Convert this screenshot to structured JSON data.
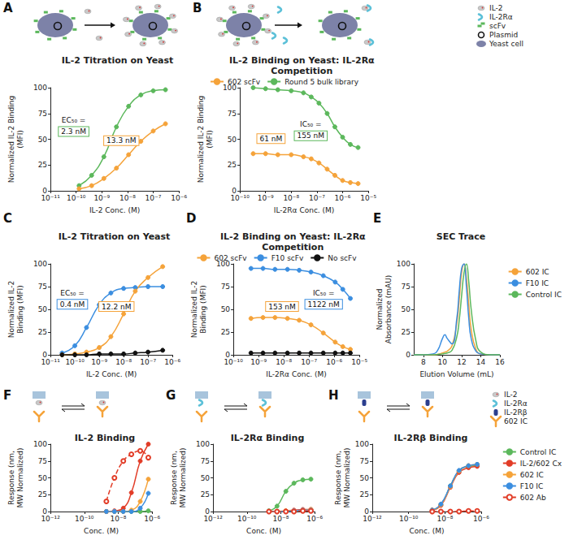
{
  "chart_data": [
    {
      "panel": "A",
      "type": "line",
      "title": "IL-2 Titration on Yeast",
      "x_label": "IL-2 Conc. (M)",
      "y_label": "Normalized IL-2 Binding (MFI)",
      "log": "x",
      "grid": false,
      "xlim": [
        1e-11,
        1e-06
      ],
      "xticks": [
        {
          "value": 1e-11,
          "label": "10⁻¹¹"
        },
        {
          "value": 1e-10,
          "label": "10⁻¹⁰"
        },
        {
          "value": 1e-09,
          "label": "10⁻⁹"
        },
        {
          "value": 1e-08,
          "label": "10⁻⁸"
        },
        {
          "value": 1e-07,
          "label": "10⁻⁷"
        },
        {
          "value": 1e-06,
          "label": "10⁻⁶"
        }
      ],
      "ylim": [
        0,
        100
      ],
      "yticks": [
        0,
        25,
        50,
        75,
        100
      ],
      "series": [
        {
          "color": "#5cb85c",
          "marker": "circle",
          "line_style": "solid",
          "x": [
            1.3e-10,
            4e-10,
            1.2e-09,
            3.7e-09,
            1.1e-08,
            3.3e-08,
            1e-07,
            3e-07
          ],
          "values": [
            5,
            15,
            33,
            62,
            82,
            93,
            97,
            98
          ]
        },
        {
          "color": "#f5a33a",
          "marker": "circle",
          "line_style": "solid",
          "x": [
            1.3e-10,
            4e-10,
            1.2e-09,
            3.7e-09,
            1.1e-08,
            3.3e-08,
            1e-07,
            3e-07
          ],
          "values": [
            2,
            5,
            12,
            22,
            35,
            48,
            58,
            65
          ]
        }
      ],
      "annotations": [
        {
          "text": "EC₅₀ =",
          "boxed": "2.3 nM",
          "color": "#5cb85c"
        },
        {
          "boxed": "13.3 nM",
          "color": "#f5a33a"
        }
      ]
    },
    {
      "panel": "B",
      "type": "line",
      "title": "IL-2 Binding on Yeast: IL-2Rα Competition",
      "x_label": "IL-2Rα Conc. (M)",
      "y_label": "Normalized IL-2 Binding (MFI)",
      "log": "x",
      "grid": false,
      "legend": "top",
      "xlim": [
        1e-10,
        1e-05
      ],
      "xticks": [
        {
          "value": 1e-10,
          "label": "10⁻¹⁰"
        },
        {
          "value": 1e-09,
          "label": "10⁻⁹"
        },
        {
          "value": 1e-08,
          "label": "10⁻⁸"
        },
        {
          "value": 1e-07,
          "label": "10⁻⁷"
        },
        {
          "value": 1e-06,
          "label": "10⁻⁶"
        },
        {
          "value": 1e-05,
          "label": "10⁻⁵"
        }
      ],
      "ylim": [
        0,
        100
      ],
      "yticks": [
        0,
        25,
        50,
        75,
        100
      ],
      "series": [
        {
          "name": "602 scFv",
          "color": "#f5a33a",
          "marker": "circle",
          "line_style": "solid",
          "x": [
            3.3e-10,
            1e-09,
            3e-09,
            1e-08,
            3e-08,
            6e-08,
            1.2e-07,
            2.5e-07,
            5e-07,
            1e-06,
            2e-06,
            4e-06
          ],
          "values": [
            36,
            36,
            35,
            35,
            33,
            31,
            27,
            21,
            15,
            10,
            8,
            7
          ]
        },
        {
          "name": "Round 5 bulk library",
          "color": "#5cb85c",
          "marker": "circle",
          "line_style": "solid",
          "x": [
            3.3e-10,
            1e-09,
            3e-09,
            1e-08,
            3e-08,
            6e-08,
            1.2e-07,
            2.5e-07,
            5e-07,
            1e-06,
            2e-06,
            4e-06
          ],
          "values": [
            100,
            99,
            98,
            97,
            95,
            91,
            85,
            75,
            62,
            52,
            45,
            42
          ]
        }
      ],
      "annotations": [
        {
          "text": "IC₅₀ =",
          "boxed": "155 nM",
          "color": "#5cb85c"
        },
        {
          "boxed": "61 nM",
          "color": "#f5a33a"
        }
      ]
    },
    {
      "panel": "C",
      "type": "line",
      "title": "IL-2 Titration on Yeast",
      "x_label": "IL-2 Conc. (M)",
      "y_label": "Normalized IL-2 Binding (MFI)",
      "log": "x",
      "grid": false,
      "xlim": [
        1e-11,
        1e-06
      ],
      "xticks": [
        {
          "value": 1e-11,
          "label": "10⁻¹¹"
        },
        {
          "value": 1e-10,
          "label": "10⁻¹⁰"
        },
        {
          "value": 1e-09,
          "label": "10⁻⁹"
        },
        {
          "value": 1e-08,
          "label": "10⁻⁸"
        },
        {
          "value": 1e-07,
          "label": "10⁻⁷"
        },
        {
          "value": 1e-06,
          "label": "10⁻⁶"
        }
      ],
      "ylim": [
        0,
        100
      ],
      "yticks": [
        0,
        25,
        50,
        75,
        100
      ],
      "series": [
        {
          "color": "#3b8ee0",
          "marker": "circle",
          "line_style": "solid",
          "x": [
            3e-11,
            1e-10,
            3e-10,
            1e-09,
            3e-09,
            1e-08,
            3e-08,
            1e-07,
            4e-07
          ],
          "values": [
            2,
            10,
            30,
            55,
            68,
            73,
            74,
            75,
            75
          ]
        },
        {
          "color": "#f5a33a",
          "marker": "circle",
          "line_style": "solid",
          "x": [
            3e-11,
            1e-10,
            3e-10,
            1e-09,
            3e-09,
            1e-08,
            3e-08,
            1e-07,
            4e-07
          ],
          "values": [
            0,
            1,
            3,
            8,
            20,
            45,
            70,
            85,
            97
          ]
        },
        {
          "color": "#111111",
          "marker": "circle",
          "line_style": "solid",
          "x": [
            3e-11,
            1e-10,
            3e-10,
            1e-09,
            3e-09,
            1e-08,
            3e-08,
            1e-07,
            4e-07
          ],
          "values": [
            0,
            0,
            0,
            1,
            1,
            1,
            2,
            3,
            5
          ]
        }
      ],
      "annotations": [
        {
          "text": "EC₅₀ =",
          "boxed": "0.4 nM",
          "color": "#3b8ee0"
        },
        {
          "boxed": "12.2 nM",
          "color": "#f5a33a"
        }
      ]
    },
    {
      "panel": "D",
      "type": "line",
      "title": "IL-2 Binding on Yeast: IL-2Rα Competition",
      "x_label": "IL-2Rα Conc. (M)",
      "y_label": "Normalized IL-2 Binding (MFI)",
      "log": "x",
      "grid": false,
      "legend": "top",
      "xlim": [
        1e-10,
        1e-05
      ],
      "xticks": [
        {
          "value": 1e-10,
          "label": "10⁻¹⁰"
        },
        {
          "value": 1e-09,
          "label": "10⁻⁹"
        },
        {
          "value": 1e-08,
          "label": "10⁻⁸"
        },
        {
          "value": 1e-07,
          "label": "10⁻⁷"
        },
        {
          "value": 1e-06,
          "label": "10⁻⁶"
        },
        {
          "value": 1e-05,
          "label": "10⁻⁵"
        }
      ],
      "ylim": [
        0,
        100
      ],
      "yticks": [
        0,
        25,
        50,
        75,
        100
      ],
      "series": [
        {
          "name": "602 scFv",
          "color": "#f5a33a",
          "marker": "circle",
          "line_style": "solid",
          "x": [
            5e-10,
            1.5e-09,
            4.5e-09,
            1.4e-08,
            4.1e-08,
            1.2e-07,
            3.7e-07,
            1.1e-06,
            2.2e-06,
            4.4e-06
          ],
          "values": [
            40,
            41,
            41,
            40,
            38,
            33,
            24,
            14,
            9,
            6
          ]
        },
        {
          "name": "F10 scFv",
          "color": "#3b8ee0",
          "marker": "circle",
          "line_style": "solid",
          "x": [
            5e-10,
            1.5e-09,
            4.5e-09,
            1.4e-08,
            4.1e-08,
            1.2e-07,
            3.7e-07,
            1.1e-06,
            2.2e-06,
            4.4e-06
          ],
          "values": [
            95,
            95,
            94,
            94,
            93,
            91,
            87,
            80,
            72,
            62
          ]
        },
        {
          "name": "No scFv",
          "color": "#111111",
          "marker": "circle",
          "line_style": "solid",
          "x": [
            5e-10,
            1.5e-09,
            4.5e-09,
            1.4e-08,
            4.1e-08,
            1.2e-07,
            3.7e-07,
            1.1e-06,
            2.2e-06,
            4.4e-06
          ],
          "values": [
            2,
            2,
            2,
            2,
            2,
            2,
            2,
            2,
            2,
            2
          ]
        }
      ],
      "annotations": [
        {
          "text": "IC₅₀ =",
          "boxed": "1122 nM",
          "color": "#3b8ee0"
        },
        {
          "boxed": "153 nM",
          "color": "#f5a33a"
        }
      ]
    },
    {
      "panel": "E",
      "type": "line",
      "title": "SEC Trace",
      "x_label": "Elution Volume (mL)",
      "y_label": "Normalized Absorbance (mAU)",
      "grid": false,
      "legend": "right",
      "xlim": [
        7,
        16
      ],
      "xticks": [
        8,
        10,
        12,
        14,
        16
      ],
      "ylim": [
        0,
        100
      ],
      "yticks": [
        0,
        25,
        50,
        75,
        100
      ],
      "x": [
        7,
        8,
        9,
        9.5,
        10,
        10.25,
        10.5,
        11,
        11.5,
        11.75,
        12,
        12.25,
        12.5,
        12.75,
        13,
        13.5,
        14,
        15,
        16
      ],
      "series": [
        {
          "name": "602 IC",
          "color": "#f5a33a",
          "marker": "none",
          "line_style": "solid",
          "values": [
            0,
            0,
            0,
            0.5,
            2,
            3,
            4,
            10,
            35,
            60,
            90,
            100,
            85,
            55,
            28,
            6,
            1,
            0,
            0
          ]
        },
        {
          "name": "F10 IC",
          "color": "#3b8ee0",
          "marker": "none",
          "line_style": "solid",
          "values": [
            0,
            0,
            1,
            5,
            18,
            22,
            18,
            12,
            40,
            70,
            95,
            100,
            75,
            40,
            18,
            4,
            1,
            0,
            0
          ]
        },
        {
          "name": "Control IC",
          "color": "#5cb85c",
          "marker": "none",
          "line_style": "solid",
          "values": [
            0,
            0,
            0,
            0.5,
            1,
            1.5,
            2,
            5,
            20,
            38,
            65,
            90,
            100,
            80,
            50,
            15,
            3,
            0,
            0
          ]
        }
      ]
    },
    {
      "panel": "F",
      "type": "line",
      "title": "IL-2 Binding",
      "x_label": "Conc. (M)",
      "y_label": "Response (nm, MW Normalized)",
      "log": "x",
      "grid": false,
      "xlim": [
        1e-12,
        1e-06
      ],
      "xticks": [
        {
          "value": 1e-12,
          "label": "10⁻¹²"
        },
        {
          "value": 1e-10,
          "label": "10⁻¹⁰"
        },
        {
          "value": 1e-08,
          "label": "10⁻⁸"
        },
        {
          "value": 1e-06,
          "label": "10⁻⁶"
        }
      ],
      "ylim": [
        0,
        100
      ],
      "yticks": [
        0,
        25,
        50,
        75,
        100
      ],
      "x": [
        2e-09,
        6e-09,
        2e-08,
        6e-08,
        2e-07,
        6e-07
      ],
      "series": [
        {
          "color": "#5cb85c",
          "marker": "circle",
          "line_style": "solid",
          "values": [
            0,
            0,
            0,
            0,
            0,
            1
          ]
        },
        {
          "color": "#e23d28",
          "marker": "circle",
          "line_style": "solid",
          "values": [
            0,
            1,
            5,
            28,
            75,
            100
          ]
        },
        {
          "color": "#f5a33a",
          "marker": "circle",
          "line_style": "solid",
          "values": [
            0,
            0,
            0,
            2,
            15,
            48
          ]
        },
        {
          "color": "#3b8ee0",
          "marker": "circle",
          "line_style": "solid",
          "values": [
            0,
            0,
            0,
            0,
            5,
            27
          ]
        },
        {
          "color": "#e23d28",
          "marker": "open_circle",
          "line_style": "dashed",
          "values": [
            15,
            50,
            75,
            85,
            90,
            80
          ]
        }
      ]
    },
    {
      "panel": "G",
      "type": "line",
      "title": "IL-2Rα Binding",
      "x_label": "Conc. (M)",
      "y_label": "Response (nm, MW Normalized)",
      "log": "x",
      "grid": false,
      "xlim": [
        1e-12,
        1e-06
      ],
      "xticks": [
        {
          "value": 1e-12,
          "label": "10⁻¹²"
        },
        {
          "value": 1e-10,
          "label": "10⁻¹⁰"
        },
        {
          "value": 1e-08,
          "label": "10⁻⁸"
        },
        {
          "value": 1e-06,
          "label": "10⁻⁶"
        }
      ],
      "ylim": [
        0,
        100
      ],
      "yticks": [
        0,
        25,
        50,
        75,
        100
      ],
      "x": [
        2e-09,
        6e-09,
        2e-08,
        6e-08,
        2e-07,
        6e-07
      ],
      "series": [
        {
          "color": "#5cb85c",
          "marker": "circle",
          "line_style": "solid",
          "values": [
            1,
            8,
            30,
            42,
            47,
            48
          ]
        },
        {
          "color": "#e23d28",
          "marker": "circle",
          "line_style": "solid",
          "values": [
            0,
            0,
            1,
            2,
            3,
            3
          ]
        },
        {
          "color": "#f5a33a",
          "marker": "circle",
          "line_style": "solid",
          "values": [
            0,
            0,
            1,
            1,
            2,
            3
          ]
        },
        {
          "color": "#3b8ee0",
          "marker": "circle",
          "line_style": "solid",
          "values": [
            0,
            0,
            0,
            1,
            2,
            2
          ]
        },
        {
          "color": "#e23d28",
          "marker": "open_circle",
          "line_style": "dashed",
          "values": [
            0,
            0,
            0,
            0,
            1,
            1
          ]
        }
      ]
    },
    {
      "panel": "H",
      "type": "line",
      "title": "IL-2Rβ Binding",
      "x_label": "Conc. (M)",
      "y_label": "Response (nm, MW Normalized)",
      "log": "x",
      "grid": false,
      "legend": "right",
      "xlim": [
        1e-12,
        1e-06
      ],
      "xticks": [
        {
          "value": 1e-12,
          "label": "10⁻¹²"
        },
        {
          "value": 1e-10,
          "label": "10⁻¹⁰"
        },
        {
          "value": 1e-08,
          "label": "10⁻⁸"
        },
        {
          "value": 1e-06,
          "label": "10⁻⁶"
        }
      ],
      "ylim": [
        0,
        100
      ],
      "yticks": [
        0,
        25,
        50,
        75,
        100
      ],
      "x": [
        2e-09,
        6e-09,
        2e-08,
        6e-08,
        2e-07,
        6e-07
      ],
      "series": [
        {
          "name": "Control IC",
          "color": "#5cb85c",
          "marker": "circle",
          "line_style": "solid",
          "values": [
            2,
            10,
            38,
            60,
            67,
            68
          ]
        },
        {
          "name": "IL-2/602 Cx",
          "color": "#e23d28",
          "marker": "circle",
          "line_style": "solid",
          "values": [
            2,
            9,
            36,
            58,
            65,
            67
          ]
        },
        {
          "name": "602 IC",
          "color": "#f5a33a",
          "marker": "circle",
          "line_style": "solid",
          "values": [
            2,
            10,
            37,
            60,
            68,
            70
          ]
        },
        {
          "name": "F10 IC",
          "color": "#3b8ee0",
          "marker": "circle",
          "line_style": "solid",
          "values": [
            2,
            11,
            38,
            61,
            68,
            70
          ]
        },
        {
          "name": "602 Ab",
          "color": "#e23d28",
          "marker": "open_circle",
          "line_style": "dashed",
          "values": [
            0,
            0,
            0,
            0,
            1,
            1
          ]
        }
      ]
    }
  ],
  "schematic_key_top": [
    "IL-2",
    "IL-2Rα",
    "scFv",
    "Plasmid",
    "Yeast cell"
  ],
  "schematic_key_bottom": [
    "IL-2",
    "IL-2Rα",
    "IL-2Rβ",
    "602 IC"
  ]
}
